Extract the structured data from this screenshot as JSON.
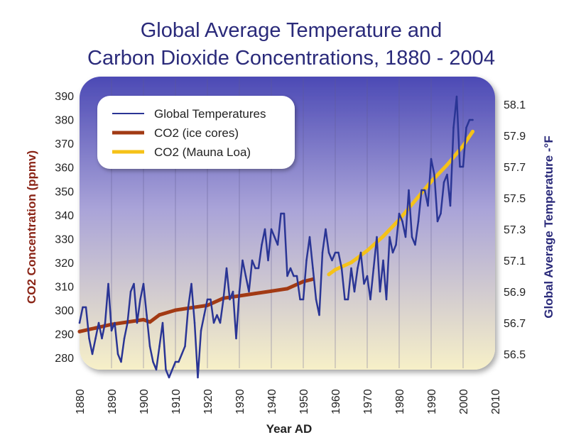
{
  "chart_data": {
    "type": "line",
    "title_line1": "Global Average Temperature and",
    "title_line2": "Carbon Dioxide Concentrations, 1880 - 2004",
    "xlabel": "Year AD",
    "ylabel_left": "CO2 Concentration (ppmv)",
    "ylabel_right": "Global Average Temperature -°F",
    "xlim": [
      1880,
      2010
    ],
    "ylim_left": [
      275,
      393
    ],
    "ylim_right": [
      56.4,
      58.2
    ],
    "xticks": [
      "1880",
      "1890",
      "1900",
      "1910",
      "1920",
      "1930",
      "1940",
      "1950",
      "1960",
      "1970",
      "1980",
      "1990",
      "2000",
      "2010"
    ],
    "yticks_left": [
      "280",
      "290",
      "300",
      "310",
      "320",
      "330",
      "340",
      "350",
      "360",
      "370",
      "380",
      "390"
    ],
    "yticks_right": [
      "56.5",
      "56.7",
      "56.9",
      "57.1",
      "57.3",
      "57.5",
      "57.7",
      "57.9",
      "58.1"
    ],
    "grid": "vertical",
    "legend_position": "top-left",
    "colors": {
      "temperature": "#2a3595",
      "co2_ice": "#a23a14",
      "co2_mauna": "#f5c218",
      "title": "#2a2a7a",
      "left_axis_label": "#8a2416",
      "right_axis_label": "#2a2a7a",
      "plot_top": "#4c4ab5",
      "plot_bottom": "#f7f0c8"
    },
    "series": [
      {
        "name": "Global Temperatures",
        "axis": "right",
        "x": [
          1880,
          1881,
          1882,
          1883,
          1884,
          1885,
          1886,
          1887,
          1888,
          1889,
          1890,
          1891,
          1892,
          1893,
          1894,
          1895,
          1896,
          1897,
          1898,
          1899,
          1900,
          1901,
          1902,
          1903,
          1904,
          1905,
          1906,
          1907,
          1908,
          1909,
          1910,
          1911,
          1912,
          1913,
          1914,
          1915,
          1916,
          1917,
          1918,
          1919,
          1920,
          1921,
          1922,
          1923,
          1924,
          1925,
          1926,
          1927,
          1928,
          1929,
          1930,
          1931,
          1932,
          1933,
          1934,
          1935,
          1936,
          1937,
          1938,
          1939,
          1940,
          1941,
          1942,
          1943,
          1944,
          1945,
          1946,
          1947,
          1948,
          1949,
          1950,
          1951,
          1952,
          1953,
          1954,
          1955,
          1956,
          1957,
          1958,
          1959,
          1960,
          1961,
          1962,
          1963,
          1964,
          1965,
          1966,
          1967,
          1968,
          1969,
          1970,
          1971,
          1972,
          1973,
          1974,
          1975,
          1976,
          1977,
          1978,
          1979,
          1980,
          1981,
          1982,
          1983,
          1984,
          1985,
          1986,
          1987,
          1988,
          1989,
          1990,
          1991,
          1992,
          1993,
          1994,
          1995,
          1996,
          1997,
          1998,
          1999,
          2000,
          2001,
          2002,
          2003
        ],
        "values": [
          56.7,
          56.8,
          56.8,
          56.6,
          56.5,
          56.6,
          56.7,
          56.6,
          56.7,
          56.95,
          56.65,
          56.7,
          56.5,
          56.45,
          56.6,
          56.7,
          56.9,
          56.95,
          56.7,
          56.85,
          56.95,
          56.75,
          56.55,
          56.45,
          56.4,
          56.55,
          56.7,
          56.4,
          56.35,
          56.4,
          56.45,
          56.45,
          56.5,
          56.55,
          56.8,
          56.95,
          56.7,
          56.35,
          56.65,
          56.75,
          56.85,
          56.85,
          56.7,
          56.75,
          56.7,
          56.85,
          57.05,
          56.85,
          56.9,
          56.6,
          56.9,
          57.1,
          57.0,
          56.9,
          57.1,
          57.05,
          57.05,
          57.2,
          57.3,
          57.1,
          57.3,
          57.25,
          57.2,
          57.4,
          57.4,
          57.0,
          57.05,
          57.0,
          57.0,
          56.85,
          56.85,
          57.1,
          57.25,
          57.05,
          56.85,
          56.75,
          57.15,
          57.3,
          57.15,
          57.1,
          57.15,
          57.15,
          57.05,
          56.85,
          56.85,
          57.05,
          56.9,
          57.05,
          57.15,
          56.95,
          57.0,
          56.85,
          57.05,
          57.25,
          56.9,
          57.1,
          56.85,
          57.25,
          57.15,
          57.2,
          57.4,
          57.35,
          57.25,
          57.55,
          57.25,
          57.2,
          57.35,
          57.55,
          57.55,
          57.45,
          57.75,
          57.65,
          57.35,
          57.4,
          57.6,
          57.65,
          57.45,
          57.95,
          58.15,
          57.7,
          57.7,
          57.95,
          58.0,
          58.0
        ]
      },
      {
        "name": "CO2 (ice cores)",
        "axis": "left",
        "x": [
          1880,
          1885,
          1890,
          1895,
          1900,
          1902,
          1905,
          1910,
          1915,
          1920,
          1925,
          1930,
          1935,
          1940,
          1945,
          1950,
          1953
        ],
        "values": [
          291,
          292.5,
          294,
          295,
          296,
          295,
          298,
          300,
          301,
          302,
          305,
          306,
          307,
          308,
          309,
          312,
          313
        ]
      },
      {
        "name": "CO2 (Mauna Loa)",
        "axis": "left",
        "x": [
          1958,
          1960,
          1965,
          1970,
          1975,
          1980,
          1985,
          1990,
          1995,
          2000,
          2003
        ],
        "values": [
          315,
          317,
          320,
          325,
          331,
          338,
          346,
          354,
          361,
          369,
          375
        ]
      }
    ]
  }
}
